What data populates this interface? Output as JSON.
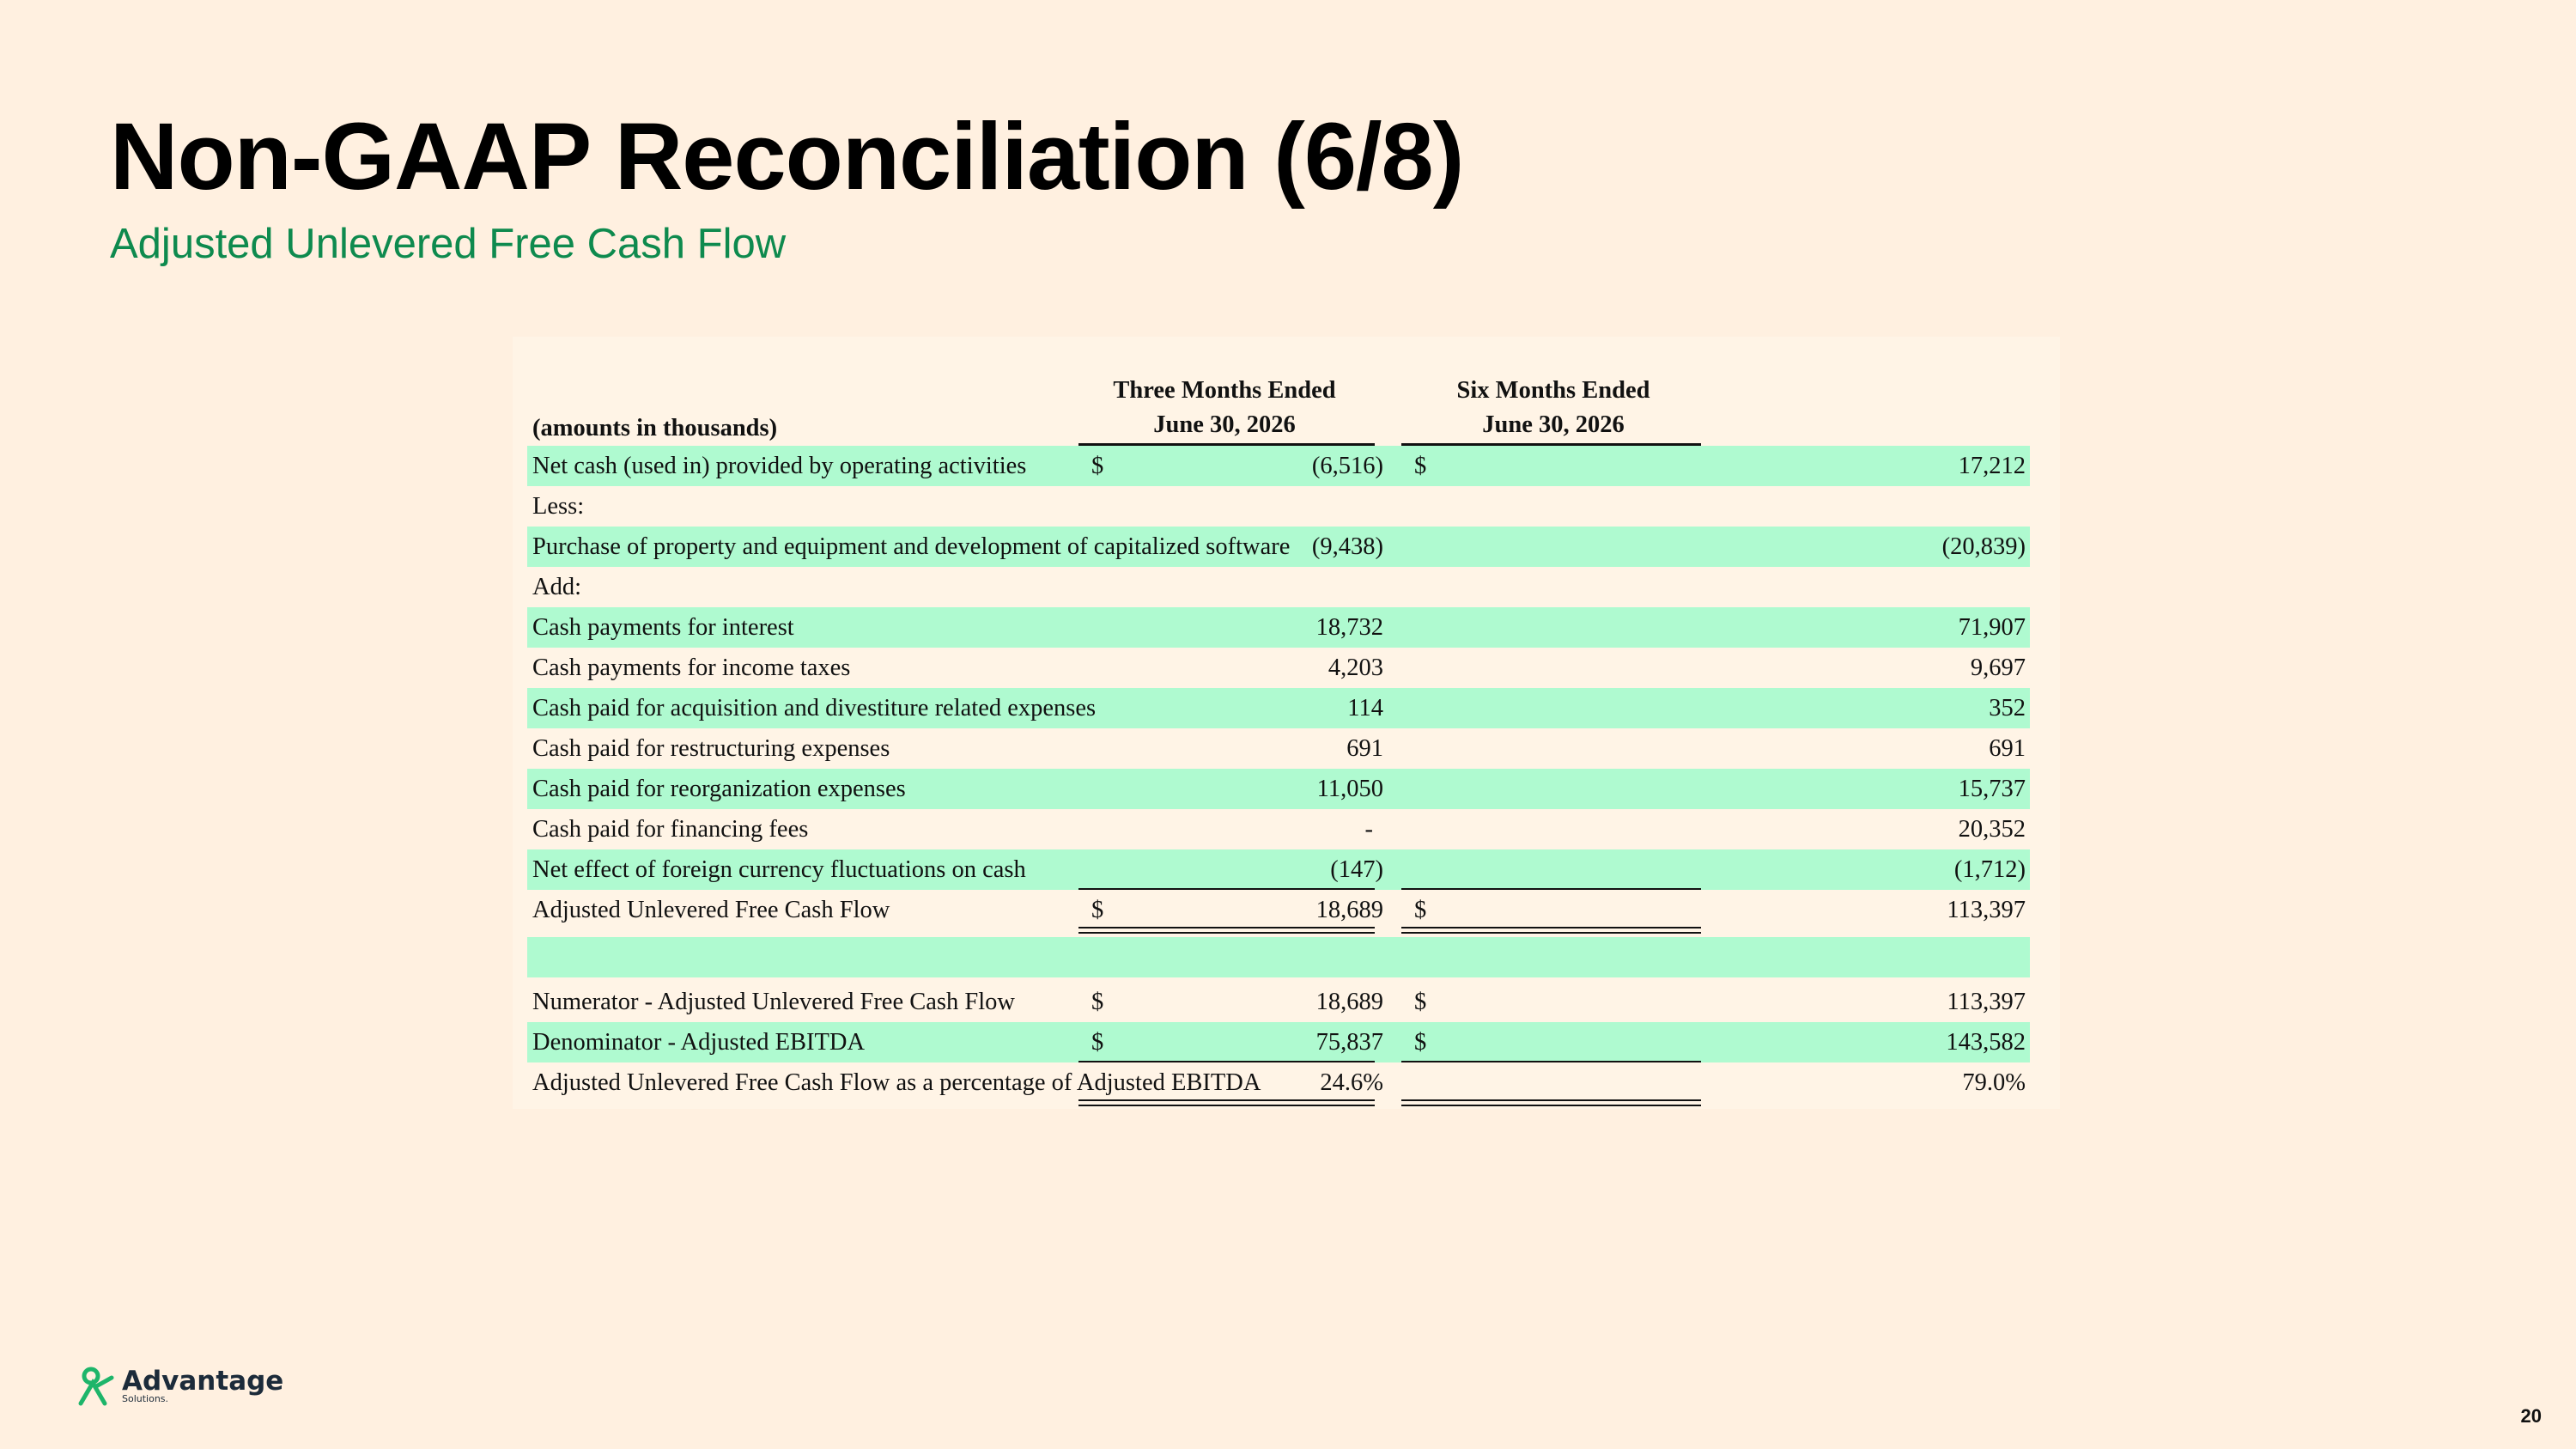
{
  "slide": {
    "title": "Non-GAAP Reconciliation (6/8)",
    "subtitle": "Adjusted Unlevered Free Cash Flow",
    "page_number": "20"
  },
  "table": {
    "units_label": "(amounts in thousands)",
    "col1_header_1": "Three Months Ended",
    "col1_header_2": "June 30, 2026",
    "col2_header_1": "Six Months Ended",
    "col2_header_2": "June 30, 2026",
    "rows": [
      {
        "label": "Net cash (used in) provided by operating activities",
        "d1": "$",
        "v1": "(6,516)",
        "d2": "$",
        "v2": "17,212"
      },
      {
        "label": "Less:",
        "d1": "",
        "v1": "",
        "d2": "",
        "v2": ""
      },
      {
        "label": "Purchase of property and equipment and development of capitalized software",
        "d1": "",
        "v1": "(9,438)",
        "d2": "",
        "v2": "(20,839)"
      },
      {
        "label": "Add:",
        "d1": "",
        "v1": "",
        "d2": "",
        "v2": ""
      },
      {
        "label": "Cash payments for interest",
        "d1": "",
        "v1": "18,732",
        "d2": "",
        "v2": "71,907"
      },
      {
        "label": "Cash payments for income taxes",
        "d1": "",
        "v1": "4,203",
        "d2": "",
        "v2": "9,697"
      },
      {
        "label": "Cash paid for acquisition and divestiture related expenses",
        "d1": "",
        "v1": "114",
        "d2": "",
        "v2": "352"
      },
      {
        "label": "Cash paid for restructuring expenses",
        "d1": "",
        "v1": "691",
        "d2": "",
        "v2": "691"
      },
      {
        "label": "Cash paid for reorganization expenses",
        "d1": "",
        "v1": "11,050",
        "d2": "",
        "v2": "15,737"
      },
      {
        "label": "Cash paid for financing fees",
        "d1": "",
        "v1": "-",
        "d2": "",
        "v2": "20,352"
      },
      {
        "label": "Net effect of foreign currency fluctuations on cash",
        "d1": "",
        "v1": "(147)",
        "d2": "",
        "v2": "(1,712)"
      },
      {
        "label": "Adjusted Unlevered Free Cash Flow",
        "d1": "$",
        "v1": "18,689",
        "d2": "$",
        "v2": "113,397"
      },
      {
        "label": "Numerator - Adjusted Unlevered Free Cash Flow",
        "d1": "$",
        "v1": "18,689",
        "d2": "$",
        "v2": "113,397"
      },
      {
        "label": "Denominator - Adjusted EBITDA",
        "d1": "$",
        "v1": "75,837",
        "d2": "$",
        "v2": "143,582"
      },
      {
        "label": "Adjusted Unlevered Free Cash Flow as a percentage of Adjusted EBITDA",
        "d1": "",
        "v1": "24.6%",
        "d2": "",
        "v2": "79.0%"
      }
    ]
  },
  "logo": {
    "brand": "Advantage",
    "sub": "Solutions."
  },
  "colors": {
    "background": "#FFF0E0",
    "accent": "#0E8A4E",
    "row_highlight": "#AFFAD0"
  }
}
